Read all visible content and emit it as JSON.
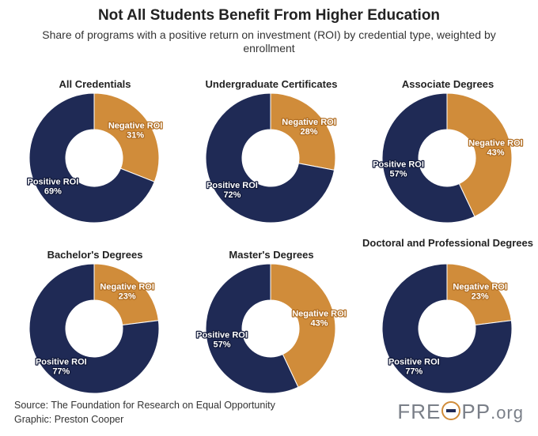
{
  "title": "Not All Students Benefit From Higher Education",
  "subtitle": "Share of programs with a positive return on investment (ROI) by credential type, weighted by enrollment",
  "colors": {
    "positive": "#1f2a55",
    "negative": "#d08c3a"
  },
  "chart_data": [
    {
      "type": "pie",
      "title": "All Credentials",
      "labels": [
        "Negative ROI",
        "Positive ROI"
      ],
      "values": [
        31,
        69
      ],
      "value_labels": [
        "31%",
        "69%"
      ]
    },
    {
      "type": "pie",
      "title": "Undergraduate Certificates",
      "labels": [
        "Negative ROI",
        "Positive ROI"
      ],
      "values": [
        28,
        72
      ],
      "value_labels": [
        "28%",
        "72%"
      ]
    },
    {
      "type": "pie",
      "title": "Associate Degrees",
      "labels": [
        "Negative ROI",
        "Positive ROI"
      ],
      "values": [
        43,
        57
      ],
      "value_labels": [
        "43%",
        "57%"
      ]
    },
    {
      "type": "pie",
      "title": "Bachelor's Degrees",
      "labels": [
        "Negative ROI",
        "Positive ROI"
      ],
      "values": [
        23,
        77
      ],
      "value_labels": [
        "23%",
        "77%"
      ]
    },
    {
      "type": "pie",
      "title": "Master's Degrees",
      "labels": [
        "Negative ROI",
        "Positive ROI"
      ],
      "values": [
        43,
        57
      ],
      "value_labels": [
        "43%",
        "57%"
      ]
    },
    {
      "type": "pie",
      "title": "Doctoral and Professional Degrees",
      "labels": [
        "Negative ROI",
        "Positive ROI"
      ],
      "values": [
        23,
        77
      ],
      "value_labels": [
        "23%",
        "77%"
      ]
    }
  ],
  "footer": {
    "source": "Source: The Foundation for Research on Equal Opportunity",
    "graphic": "Graphic: Preston Cooper"
  },
  "logo": {
    "left": "FRE",
    "right": "PP",
    "suffix": ".org"
  }
}
